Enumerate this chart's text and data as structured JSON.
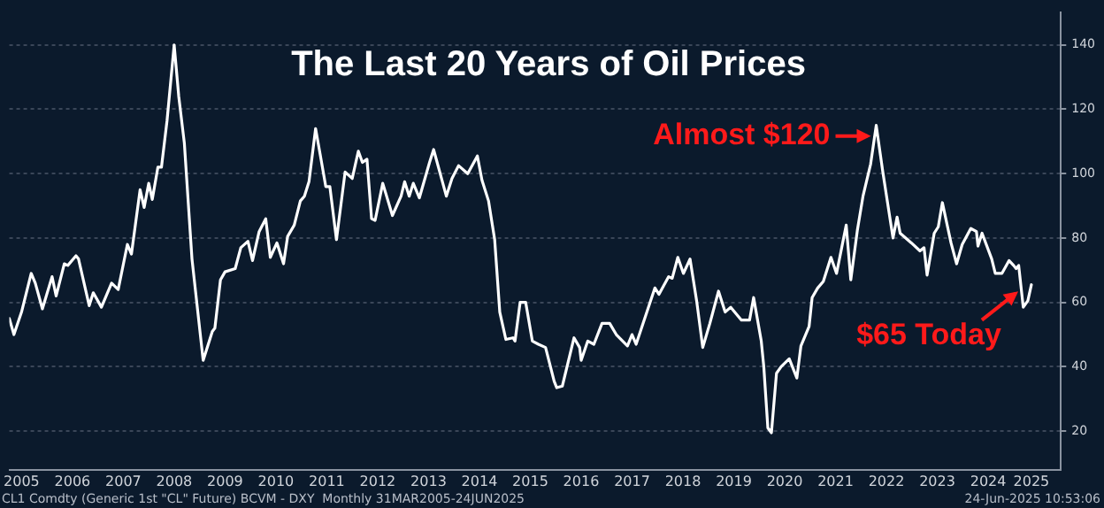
{
  "chart_data": {
    "type": "line",
    "title": "The Last 20 Years of Oil Prices",
    "x": [
      2005.26,
      2005.35,
      2005.5,
      2005.69,
      2005.77,
      2005.91,
      2006.1,
      2006.18,
      2006.34,
      2006.41,
      2006.57,
      2006.62,
      2006.83,
      2006.91,
      2007.07,
      2007.27,
      2007.4,
      2007.58,
      2007.66,
      2007.83,
      2007.91,
      2008.0,
      2008.07,
      2008.18,
      2008.25,
      2008.36,
      2008.5,
      2008.59,
      2008.7,
      2008.85,
      2009.07,
      2009.25,
      2009.3,
      2009.41,
      2009.5,
      2009.7,
      2009.81,
      2009.95,
      2010.04,
      2010.17,
      2010.3,
      2010.39,
      2010.52,
      2010.65,
      2010.73,
      2010.86,
      2010.98,
      2011.06,
      2011.15,
      2011.28,
      2011.37,
      2011.48,
      2011.56,
      2011.69,
      2011.86,
      2012.0,
      2012.12,
      2012.2,
      2012.29,
      2012.38,
      2012.45,
      2012.6,
      2012.79,
      2012.96,
      2013.03,
      2013.12,
      2013.2,
      2013.32,
      2013.52,
      2013.6,
      2013.85,
      2013.96,
      2014.09,
      2014.27,
      2014.46,
      2014.55,
      2014.68,
      2014.8,
      2014.9,
      2015.02,
      2015.16,
      2015.2,
      2015.3,
      2015.41,
      2015.54,
      2015.66,
      2015.8,
      2015.97,
      2016.02,
      2016.13,
      2016.36,
      2016.47,
      2016.5,
      2016.63,
      2016.75,
      2016.91,
      2017.06,
      2017.19,
      2017.41,
      2017.5,
      2017.58,
      2017.95,
      2018.03,
      2018.22,
      2018.29,
      2018.4,
      2018.51,
      2018.64,
      2018.77,
      2018.89,
      2019.03,
      2019.2,
      2019.33,
      2019.44,
      2019.65,
      2019.81,
      2019.89,
      2020.04,
      2020.09,
      2020.17,
      2020.24,
      2020.34,
      2020.43,
      2020.59,
      2020.74,
      2020.82,
      2020.98,
      2021.04,
      2021.15,
      2021.26,
      2021.41,
      2021.52,
      2021.71,
      2021.8,
      2021.93,
      2022.04,
      2022.19,
      2022.3,
      2022.43,
      2022.63,
      2022.71,
      2022.77,
      2022.99,
      2023.16,
      2023.24,
      2023.3,
      2023.44,
      2023.52,
      2023.6,
      2023.77,
      2023.88,
      2023.99,
      2024.16,
      2024.27,
      2024.3,
      2024.38,
      2024.57,
      2024.64,
      2024.77,
      2024.91,
      2025.0,
      2025.05,
      2025.1,
      2025.19,
      2025.28,
      2025.35
    ],
    "series": [
      {
        "color": "#ffffff",
        "values": [
          55,
          50,
          57,
          69,
          66,
          58,
          68,
          62,
          72,
          71.5,
          74.5,
          73.5,
          59,
          63,
          58.5,
          66,
          64,
          78,
          75,
          95,
          89.5,
          97,
          92,
          102,
          102,
          116.5,
          140,
          124,
          109.5,
          73.5,
          42,
          51,
          52,
          67,
          69.5,
          70.5,
          77,
          79,
          73,
          82,
          86,
          74,
          78.5,
          72,
          80.5,
          84,
          91.5,
          93,
          97.5,
          114,
          106,
          96,
          96,
          79.5,
          100.5,
          98.5,
          107,
          103.5,
          104.5,
          86,
          85.5,
          97,
          87,
          93,
          97.5,
          93,
          97,
          92.5,
          103.5,
          107.5,
          93,
          98.5,
          102.5,
          100,
          105.5,
          98,
          91.5,
          79.5,
          57,
          48.5,
          49,
          48,
          60,
          60,
          48,
          47,
          46,
          35.5,
          33.5,
          34,
          49,
          46,
          42,
          48,
          47,
          53.5,
          53.5,
          50,
          46.5,
          50,
          47,
          64.5,
          62.5,
          68,
          67.5,
          74,
          69,
          73.5,
          60.5,
          46,
          53.5,
          63.5,
          57,
          58.5,
          54.5,
          54.5,
          61.5,
          48,
          40,
          21,
          19.5,
          38,
          40,
          42.5,
          36.5,
          46.5,
          52.5,
          61.5,
          64.5,
          66.5,
          74,
          69,
          84,
          67,
          82.5,
          93,
          103,
          115,
          100.5,
          80,
          86.5,
          81.5,
          78.5,
          76,
          77,
          68.5,
          81.5,
          83.5,
          91,
          78.5,
          72,
          78,
          83,
          82,
          77.5,
          81.5,
          73.5,
          69,
          69,
          73,
          71.5,
          70.5,
          71.5,
          58.5,
          60.5,
          65.5
        ]
      }
    ],
    "xlim": [
      2005.26,
      2025.93
    ],
    "xticks": [
      {
        "value": 2005.5,
        "label": "2005"
      },
      {
        "value": 2006.5,
        "label": "2006"
      },
      {
        "value": 2007.5,
        "label": "2007"
      },
      {
        "value": 2008.5,
        "label": "2008"
      },
      {
        "value": 2009.5,
        "label": "2009"
      },
      {
        "value": 2010.5,
        "label": "2010"
      },
      {
        "value": 2011.5,
        "label": "2011"
      },
      {
        "value": 2012.5,
        "label": "2012"
      },
      {
        "value": 2013.5,
        "label": "2013"
      },
      {
        "value": 2014.5,
        "label": "2014"
      },
      {
        "value": 2015.5,
        "label": "2015"
      },
      {
        "value": 2016.5,
        "label": "2016"
      },
      {
        "value": 2017.5,
        "label": "2017"
      },
      {
        "value": 2018.5,
        "label": "2018"
      },
      {
        "value": 2019.5,
        "label": "2019"
      },
      {
        "value": 2020.5,
        "label": "2020"
      },
      {
        "value": 2021.5,
        "label": "2021"
      },
      {
        "value": 2022.5,
        "label": "2022"
      },
      {
        "value": 2023.5,
        "label": "2023"
      },
      {
        "value": 2024.5,
        "label": "2024"
      },
      {
        "value": 2025.35,
        "label": "2025"
      }
    ],
    "ylim": [
      8,
      150
    ],
    "yticks": [
      20,
      40,
      60,
      80,
      100,
      120,
      140
    ],
    "grid": "y",
    "legend": false,
    "marker": "none",
    "line_style": "solid",
    "annotations": [
      {
        "text": "Almost $120",
        "x": 2022.3,
        "y": 115
      },
      {
        "text": "$65 Today",
        "x": 2025.35,
        "y": 65.5
      },
      "CL1 Comdty (Generic 1st \"CL\" Future) BCVM - DXY  Monthly 31MAR2005-24JUN2025",
      "24-Jun-2025 10:53:06"
    ]
  }
}
